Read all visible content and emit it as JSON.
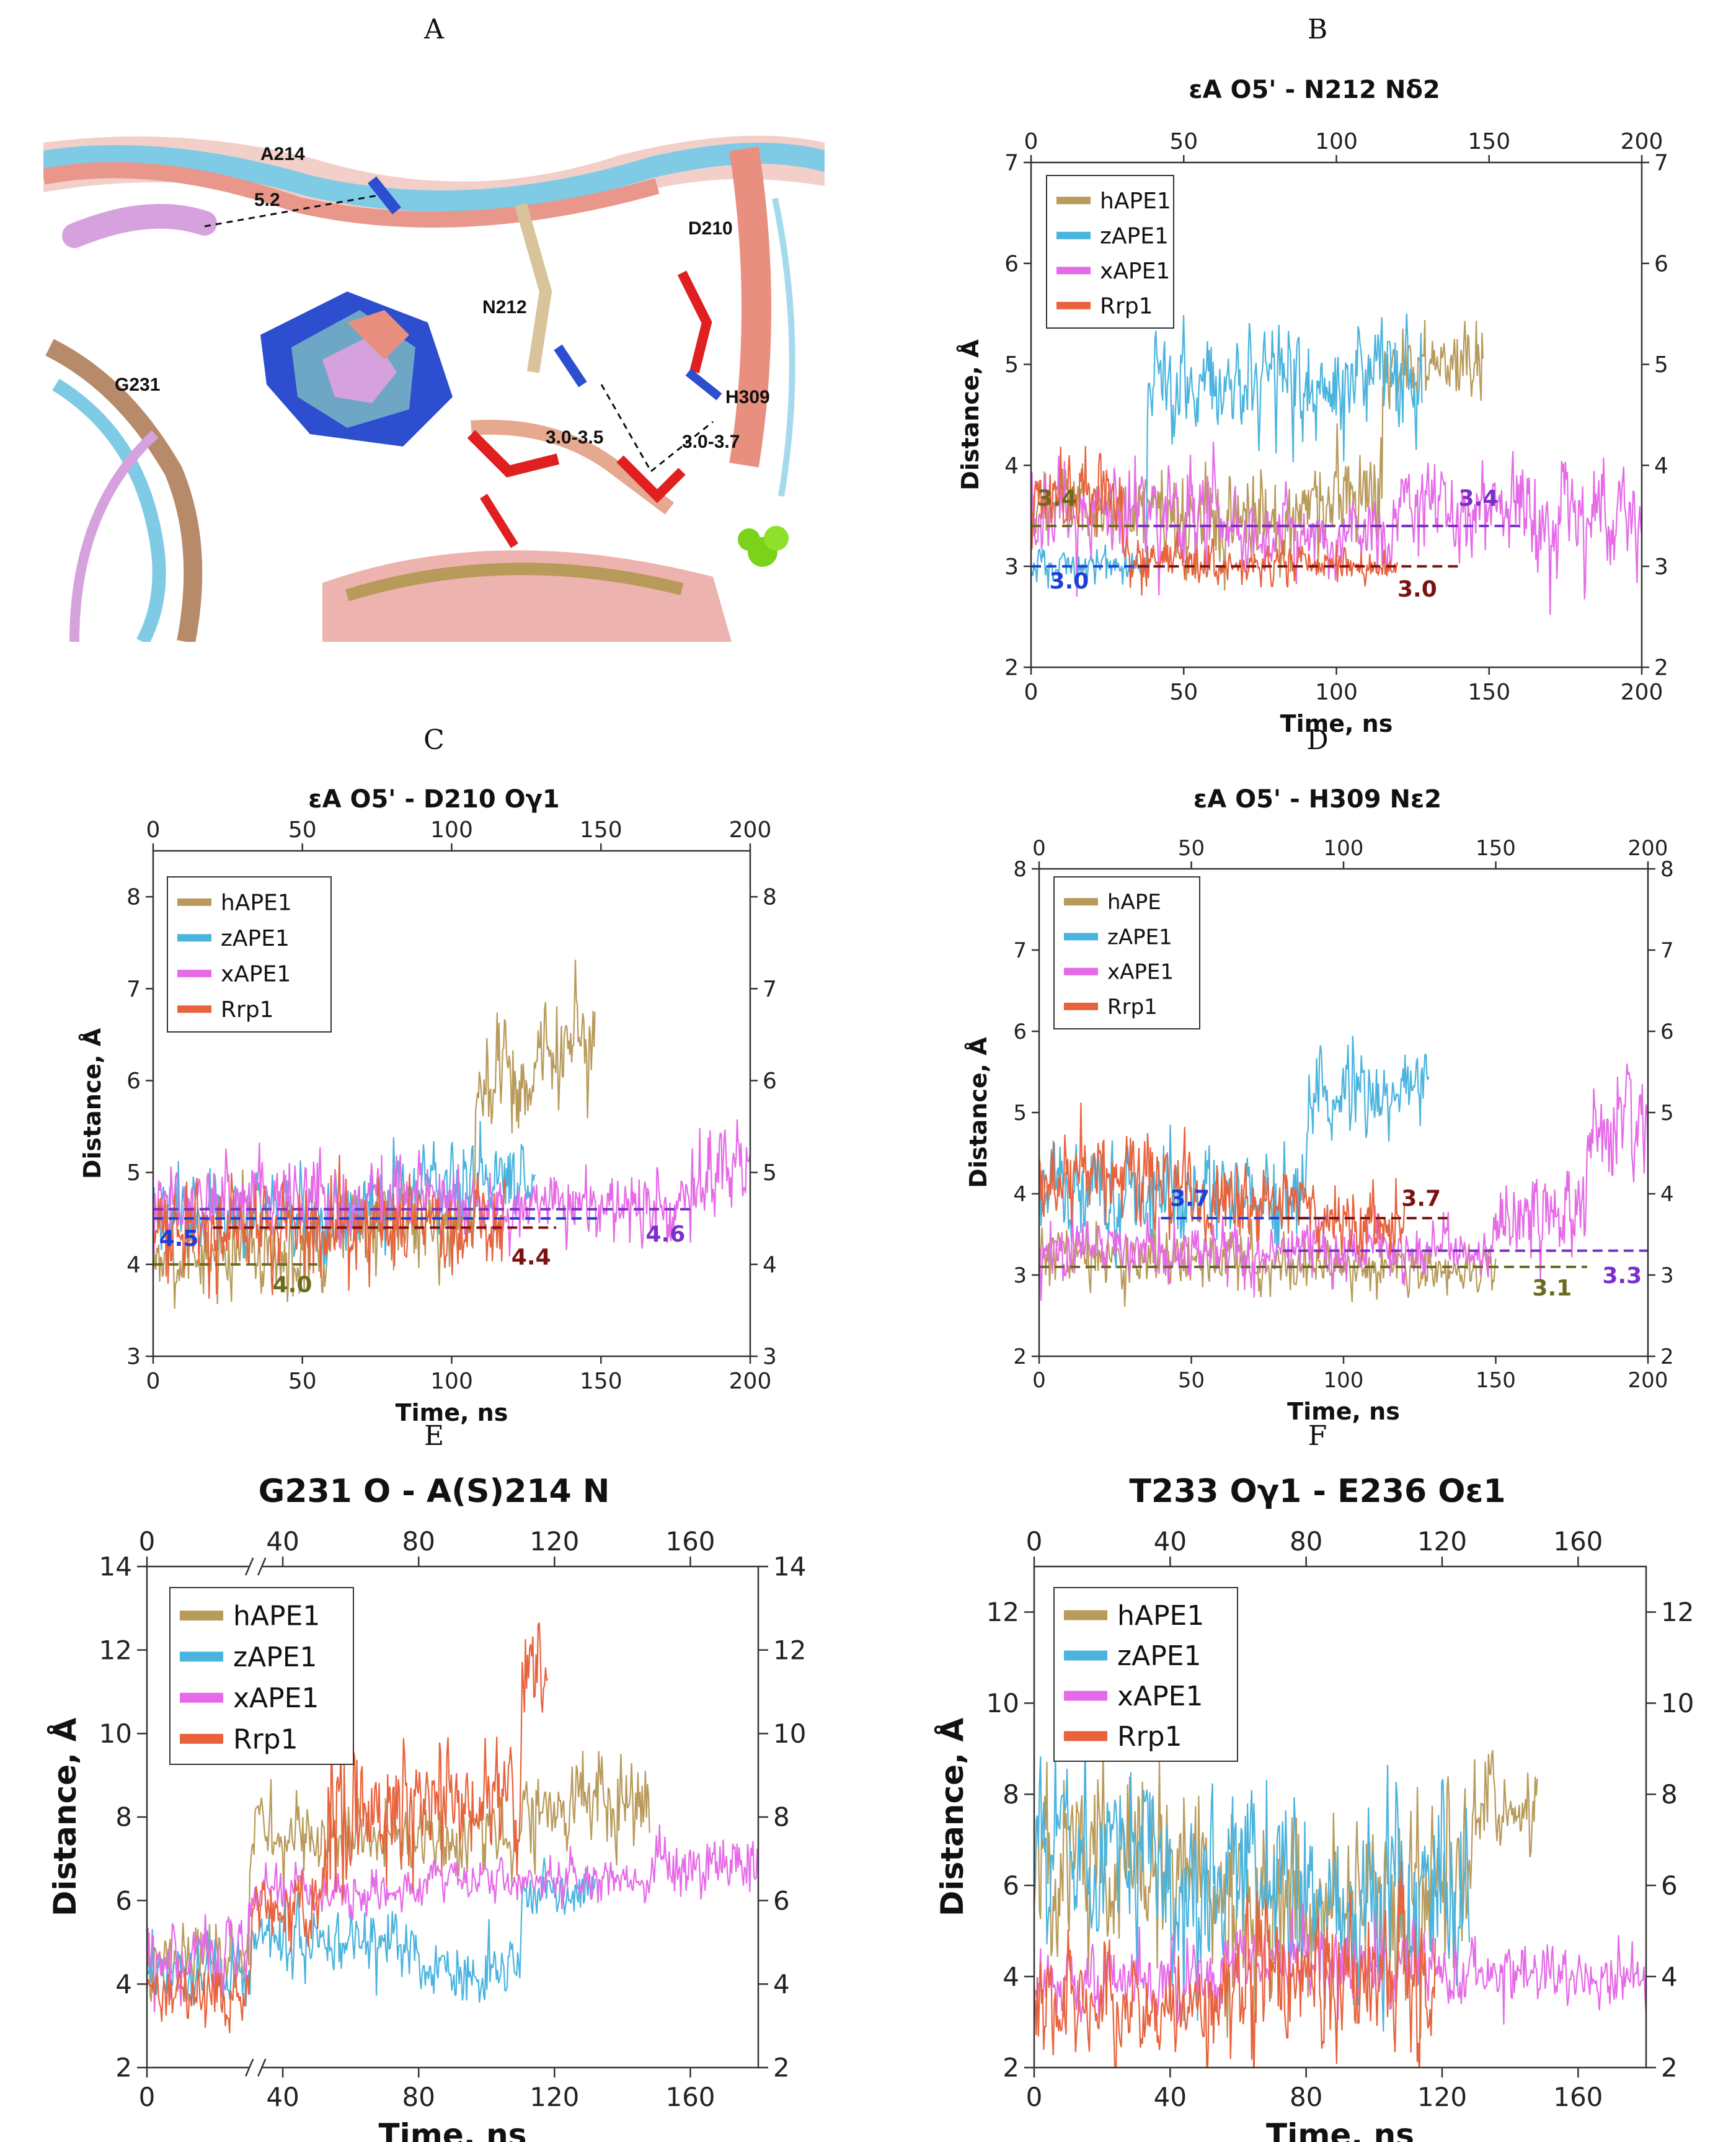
{
  "figure": {
    "panel_letters": [
      "A",
      "B",
      "C",
      "D",
      "E",
      "F"
    ],
    "structure_panel": {
      "residue_labels": [
        "A214",
        "D210",
        "N212",
        "G231",
        "H309"
      ],
      "distance_labels": [
        "5.2",
        "3.0-3.5",
        "3.0-3.7"
      ]
    }
  },
  "colors": {
    "hAPE1": "#b89a5a",
    "zAPE1": "#4ab4de",
    "xAPE1": "#e66ae8",
    "Rrp1": "#e8623c",
    "dash_h": "#6b6a1e",
    "dash_z": "#1d3fd6",
    "dash_x": "#7a2fc8",
    "dash_r": "#7a1212"
  },
  "chart_data": [
    {
      "id": "B",
      "type": "line",
      "title": "εA O5' - N212 Nδ2",
      "xlabel": "Time, ns",
      "ylabel": "Distance, Å",
      "xlim": [
        0,
        200
      ],
      "ylim": [
        2,
        7
      ],
      "xticks": [
        0,
        50,
        100,
        150,
        200
      ],
      "yticks": [
        2,
        3,
        4,
        5,
        6,
        7
      ],
      "legend": [
        "hAPE1",
        "zAPE1",
        "xAPE1",
        "Rrp1"
      ],
      "series": [
        {
          "name": "hAPE1",
          "tmax": 148,
          "segments": [
            [
              0,
              3.6,
              0.3
            ],
            [
              40,
              3.4,
              0.35
            ],
            [
              90,
              3.7,
              0.4
            ],
            [
              115,
              5.0,
              0.35
            ]
          ]
        },
        {
          "name": "zAPE1",
          "tmax": 128,
          "segments": [
            [
              0,
              3.0,
              0.15
            ],
            [
              38,
              4.8,
              0.45
            ],
            [
              100,
              4.9,
              0.5
            ]
          ]
        },
        {
          "name": "xAPE1",
          "tmax": 200,
          "segments": [
            [
              0,
              3.6,
              0.4
            ],
            [
              60,
              3.3,
              0.3
            ],
            [
              120,
              3.6,
              0.35
            ],
            [
              165,
              3.5,
              0.45
            ]
          ]
        },
        {
          "name": "Rrp1",
          "tmax": 120,
          "segments": [
            [
              0,
              3.7,
              0.35
            ],
            [
              30,
              3.1,
              0.2
            ],
            [
              60,
              3.0,
              0.15
            ]
          ]
        }
      ],
      "mean_lines": [
        {
          "x": [
            0,
            135
          ],
          "y": 3.4,
          "color": "h"
        },
        {
          "x": [
            35,
            160
          ],
          "y": 3.4,
          "color": "x"
        },
        {
          "x": [
            0,
            45
          ],
          "y": 3.0,
          "color": "z"
        },
        {
          "x": [
            35,
            140
          ],
          "y": 3.0,
          "color": "r"
        }
      ],
      "annotations": [
        {
          "text": "3.4",
          "x": 2,
          "y": 3.6,
          "color": "h"
        },
        {
          "text": "3.4",
          "x": 140,
          "y": 3.6,
          "color": "x"
        },
        {
          "text": "3.0",
          "x": 6,
          "y": 2.78,
          "color": "z"
        },
        {
          "text": "3.0",
          "x": 120,
          "y": 2.7,
          "color": "r"
        }
      ]
    },
    {
      "id": "C",
      "type": "line",
      "title": "εA O5' - D210 Oγ1",
      "xlabel": "Time, ns",
      "ylabel": "Distance, Å",
      "xlim": [
        0,
        200
      ],
      "ylim": [
        3,
        8.5
      ],
      "xticks": [
        0,
        50,
        100,
        150,
        200
      ],
      "yticks": [
        3,
        4,
        5,
        6,
        7,
        8
      ],
      "legend": [
        "hAPE1",
        "zAPE1",
        "xAPE1",
        "Rrp1"
      ],
      "series": [
        {
          "name": "hAPE1",
          "tmax": 148,
          "segments": [
            [
              0,
              4.1,
              0.4
            ],
            [
              60,
              4.5,
              0.4
            ],
            [
              108,
              6.0,
              0.45
            ],
            [
              130,
              6.3,
              0.45
            ]
          ]
        },
        {
          "name": "zAPE1",
          "tmax": 128,
          "segments": [
            [
              0,
              4.6,
              0.35
            ],
            [
              80,
              4.9,
              0.35
            ]
          ]
        },
        {
          "name": "xAPE1",
          "tmax": 200,
          "segments": [
            [
              0,
              4.7,
              0.35
            ],
            [
              100,
              4.6,
              0.3
            ],
            [
              180,
              5.0,
              0.4
            ]
          ]
        },
        {
          "name": "Rrp1",
          "tmax": 118,
          "segments": [
            [
              0,
              4.4,
              0.4
            ]
          ]
        }
      ],
      "mean_lines": [
        {
          "x": [
            0,
            55
          ],
          "y": 4.0,
          "color": "h"
        },
        {
          "x": [
            0,
            180
          ],
          "y": 4.6,
          "color": "x"
        },
        {
          "x": [
            0,
            150
          ],
          "y": 4.5,
          "color": "z"
        },
        {
          "x": [
            20,
            135
          ],
          "y": 4.4,
          "color": "r"
        }
      ],
      "annotations": [
        {
          "text": "4.0",
          "x": 40,
          "y": 3.7,
          "color": "h"
        },
        {
          "text": "4.6",
          "x": 165,
          "y": 4.25,
          "color": "x"
        },
        {
          "text": "4.5",
          "x": 2,
          "y": 4.2,
          "color": "z"
        },
        {
          "text": "4.4",
          "x": 120,
          "y": 4.0,
          "color": "r"
        }
      ]
    },
    {
      "id": "D",
      "type": "line",
      "title": "εA O5' - H309 Nε2",
      "xlabel": "Time, ns",
      "ylabel": "Distance, Å",
      "xlim": [
        0,
        200
      ],
      "ylim": [
        2,
        8
      ],
      "xticks": [
        0,
        50,
        100,
        150,
        200
      ],
      "yticks": [
        2,
        3,
        4,
        5,
        6,
        7,
        8
      ],
      "legend": [
        "hAPE",
        "zAPE1",
        "xAPE1",
        "Rrp1"
      ],
      "series": [
        {
          "name": "hAPE1",
          "tmax": 150,
          "segments": [
            [
              0,
              3.2,
              0.3
            ],
            [
              70,
              3.1,
              0.25
            ]
          ]
        },
        {
          "name": "zAPE1",
          "tmax": 128,
          "segments": [
            [
              0,
              4.0,
              0.5
            ],
            [
              80,
              3.9,
              0.5
            ],
            [
              88,
              5.2,
              0.45
            ],
            [
              110,
              5.3,
              0.4
            ]
          ]
        },
        {
          "name": "xAPE1",
          "tmax": 200,
          "segments": [
            [
              80,
              3.3,
              0.3
            ],
            [
              150,
              3.8,
              0.45
            ],
            [
              180,
              4.9,
              0.5
            ]
          ]
        },
        {
          "name": "Rrp1",
          "tmax": 120,
          "segments": [
            [
              0,
              4.2,
              0.5
            ],
            [
              50,
              3.8,
              0.4
            ],
            [
              90,
              3.6,
              0.35
            ]
          ]
        }
      ],
      "mean_lines": [
        {
          "x": [
            0,
            180
          ],
          "y": 3.1,
          "color": "h"
        },
        {
          "x": [
            80,
            200
          ],
          "y": 3.3,
          "color": "x"
        },
        {
          "x": [
            40,
            95
          ],
          "y": 3.7,
          "color": "z"
        },
        {
          "x": [
            80,
            135
          ],
          "y": 3.7,
          "color": "r"
        }
      ],
      "annotations": [
        {
          "text": "3.1",
          "x": 162,
          "y": 2.75,
          "color": "h"
        },
        {
          "text": "3.3",
          "x": 185,
          "y": 2.9,
          "color": "x"
        },
        {
          "text": "3.7",
          "x": 43,
          "y": 3.85,
          "color": "z"
        },
        {
          "text": "3.7",
          "x": 119,
          "y": 3.85,
          "color": "r"
        }
      ]
    },
    {
      "id": "E",
      "type": "line",
      "title": "G231 O - A(S)214 N",
      "xlabel": "Time, ns",
      "ylabel": "Distance, Å",
      "xlim": [
        0,
        180
      ],
      "ylim": [
        2,
        14
      ],
      "xticks": [
        0,
        40,
        80,
        120,
        160
      ],
      "yticks": [
        2,
        4,
        6,
        8,
        10,
        12,
        14
      ],
      "axis_break": true,
      "legend": [
        "hAPE1",
        "zAPE1",
        "xAPE1",
        "Rrp1"
      ],
      "series": [
        {
          "name": "hAPE1",
          "tmax": 148,
          "segments": [
            [
              0,
              4.5,
              0.7
            ],
            [
              30,
              7.6,
              0.7
            ],
            [
              110,
              8.0,
              0.8
            ],
            [
              125,
              8.4,
              1.0
            ]
          ]
        },
        {
          "name": "zAPE1",
          "tmax": 132,
          "segments": [
            [
              0,
              4.2,
              0.6
            ],
            [
              30,
              5.0,
              0.7
            ],
            [
              80,
              4.3,
              0.6
            ],
            [
              110,
              6.2,
              0.5
            ]
          ]
        },
        {
          "name": "xAPE1",
          "tmax": 180,
          "segments": [
            [
              0,
              4.7,
              0.7
            ],
            [
              30,
              6.2,
              0.5
            ],
            [
              80,
              6.5,
              0.4
            ],
            [
              150,
              6.8,
              0.6
            ]
          ]
        },
        {
          "name": "Rrp1",
          "tmax": 118,
          "segments": [
            [
              0,
              3.8,
              0.6
            ],
            [
              30,
              6.0,
              0.8
            ],
            [
              52,
              8.0,
              1.5
            ],
            [
              100,
              8.3,
              1.4
            ],
            [
              110,
              11.3,
              1.0
            ]
          ]
        }
      ],
      "mean_lines": [],
      "annotations": []
    },
    {
      "id": "F",
      "type": "line",
      "title": "T233 Oγ1 - E236 Oε1",
      "xlabel": "Time, ns",
      "ylabel": "Distance, Å",
      "xlim": [
        0,
        180
      ],
      "ylim": [
        2,
        13
      ],
      "xticks": [
        0,
        40,
        80,
        120,
        160
      ],
      "yticks": [
        2,
        4,
        6,
        8,
        10,
        12
      ],
      "legend": [
        "hAPE1",
        "zAPE1",
        "xAPE1",
        "Rrp1"
      ],
      "series": [
        {
          "name": "hAPE1",
          "tmax": 148,
          "segments": [
            [
              0,
              6.5,
              1.6
            ],
            [
              50,
              5.5,
              1.5
            ],
            [
              100,
              5.8,
              1.6
            ],
            [
              130,
              7.8,
              0.8
            ]
          ]
        },
        {
          "name": "zAPE1",
          "tmax": 128,
          "segments": [
            [
              0,
              6.8,
              1.5
            ],
            [
              40,
              5.8,
              1.6
            ],
            [
              100,
              6.0,
              1.8
            ]
          ]
        },
        {
          "name": "xAPE1",
          "tmax": 180,
          "segments": [
            [
              0,
              4.0,
              0.7
            ],
            [
              60,
              4.3,
              0.7
            ],
            [
              120,
              4.0,
              0.6
            ]
          ]
        },
        {
          "name": "Rrp1",
          "tmax": 118,
          "segments": [
            [
              0,
              3.2,
              0.8
            ],
            [
              55,
              4.0,
              1.3
            ],
            [
              100,
              3.8,
              1.4
            ]
          ]
        }
      ],
      "mean_lines": [],
      "annotations": []
    }
  ]
}
